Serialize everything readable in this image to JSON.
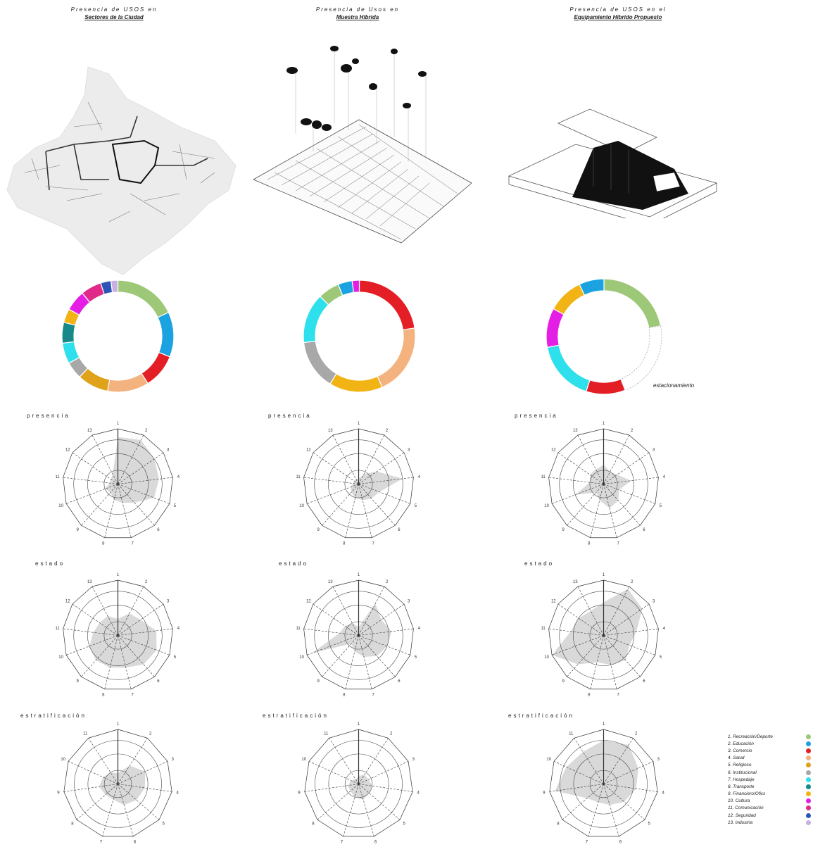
{
  "titles": [
    {
      "line1": "Presencia de USOS en",
      "line2": "Sectores de la Ciudad"
    },
    {
      "line1": "Presencia de Usos en",
      "line2": "Muestra Hibrida"
    },
    {
      "line1": "Presencia de USOS en el",
      "line2": "Equipamiento Hibrido Propuesto"
    }
  ],
  "section_labels": {
    "presencia": "presencia",
    "estado": "estado",
    "estratificacion": [
      "estratificación",
      "estratificación",
      "estratificación"
    ]
  },
  "donut_callout": "estacionamiento",
  "legend": [
    {
      "label": "1. Recreación/Deporte",
      "color": "#9dc878"
    },
    {
      "label": "2. Educación",
      "color": "#1aa3e0"
    },
    {
      "label": "3. Comercio",
      "color": "#e31e24"
    },
    {
      "label": "4. Salud",
      "color": "#f4b27f"
    },
    {
      "label": "5. Religioso",
      "color": "#e0a21a"
    },
    {
      "label": "6. Institucional",
      "color": "#a8a8a8"
    },
    {
      "label": "7. Hospedaje",
      "color": "#2de0ec"
    },
    {
      "label": "8. Transporte",
      "color": "#168a8a"
    },
    {
      "label": "9. Financiero/Ofics",
      "color": "#f2b415"
    },
    {
      "label": "10. Cultura",
      "color": "#e51ee5"
    },
    {
      "label": "11. Comunicación",
      "color": "#e02a8a"
    },
    {
      "label": "12. Seguridad",
      "color": "#2b56b8"
    },
    {
      "label": "13. Industria",
      "color": "#c9b0e0"
    }
  ],
  "chart_data": [
    {
      "type": "pie",
      "donut": true,
      "categories": [
        "1",
        "2",
        "3",
        "4",
        "5",
        "6",
        "7",
        "8",
        "9",
        "10",
        "11",
        "12",
        "13"
      ],
      "values": [
        18,
        13,
        10,
        12,
        9,
        5,
        6,
        6,
        4,
        6,
        6,
        3,
        2
      ],
      "colors": [
        "#9dc878",
        "#1aa3e0",
        "#e31e24",
        "#f4b27f",
        "#e0a21a",
        "#a8a8a8",
        "#2de0ec",
        "#168a8a",
        "#f2b415",
        "#e51ee5",
        "#e02a8a",
        "#2b56b8",
        "#c9b0e0"
      ]
    },
    {
      "type": "pie",
      "donut": true,
      "categories": [
        "3",
        "4",
        "9",
        "6",
        "7",
        "1",
        "2",
        "10"
      ],
      "values": [
        22,
        20,
        15,
        14,
        14,
        6,
        4,
        2
      ],
      "colors": [
        "#e31e24",
        "#f4b27f",
        "#f2b415",
        "#a8a8a8",
        "#2de0ec",
        "#9dc878",
        "#1aa3e0",
        "#e51ee5"
      ]
    },
    {
      "type": "pie",
      "donut": true,
      "categories": [
        "1",
        "estacionamiento",
        "3",
        "7",
        "10",
        "9",
        "2"
      ],
      "values": [
        22,
        22,
        11,
        17,
        11,
        10,
        7
      ],
      "colors": [
        "#9dc878",
        "#ffffff",
        "#e31e24",
        "#2de0ec",
        "#e51ee5",
        "#f2b415",
        "#1aa3e0"
      ]
    },
    {
      "type": "radar",
      "axes": [
        "1",
        "2",
        "3",
        "4",
        "5",
        "6",
        "7",
        "8",
        "9",
        "10",
        "11",
        "12",
        "13"
      ],
      "values": [
        0.85,
        0.9,
        0.8,
        0.75,
        0.7,
        0.45,
        0.35,
        0.3,
        0.2,
        0.25,
        0.15,
        0.15,
        0.2
      ]
    },
    {
      "type": "radar",
      "axes": [
        "1",
        "2",
        "3",
        "4",
        "5",
        "6",
        "7",
        "8",
        "9",
        "10",
        "11",
        "12",
        "13"
      ],
      "values": [
        0.1,
        0.2,
        0.4,
        0.8,
        0.4,
        0.35,
        0.3,
        0.25,
        0.2,
        0.15,
        0.1,
        0.1,
        0.1
      ]
    },
    {
      "type": "radar",
      "axes": [
        "1",
        "2",
        "3",
        "4",
        "5",
        "6",
        "7",
        "8",
        "9",
        "10",
        "11",
        "12",
        "13"
      ],
      "values": [
        0.35,
        0.25,
        0.3,
        0.5,
        0.3,
        0.4,
        0.45,
        0.3,
        0.2,
        0.55,
        0.25,
        0.3,
        0.3
      ]
    },
    {
      "type": "radar",
      "axes": [
        "1",
        "2",
        "3",
        "4",
        "5",
        "6",
        "7",
        "8",
        "9",
        "10",
        "11",
        "12",
        "13"
      ],
      "values": [
        0.3,
        0.45,
        0.5,
        0.7,
        0.75,
        0.7,
        0.6,
        0.6,
        0.6,
        0.55,
        0.45,
        0.4,
        0.4
      ]
    },
    {
      "type": "radar",
      "axes": [
        "1",
        "2",
        "3",
        "4",
        "5",
        "6",
        "7",
        "8",
        "9",
        "10",
        "11",
        "12",
        "13"
      ],
      "values": [
        0.15,
        0.65,
        0.5,
        0.6,
        0.55,
        0.5,
        0.4,
        0.3,
        0.2,
        0.9,
        0.35,
        0.3,
        0.25
      ]
    },
    {
      "type": "radar",
      "axes": [
        "1",
        "2",
        "3",
        "4",
        "5",
        "6",
        "7",
        "8",
        "9",
        "10",
        "11",
        "12",
        "13"
      ],
      "values": [
        0.6,
        0.95,
        0.85,
        0.6,
        0.5,
        0.6,
        0.55,
        0.5,
        0.7,
        1.0,
        0.6,
        0.55,
        0.5
      ]
    },
    {
      "type": "radar",
      "axes": [
        "1",
        "2",
        "3",
        "4",
        "5",
        "6",
        "7",
        "8",
        "9",
        "10",
        "11"
      ],
      "values": [
        0.2,
        0.4,
        0.55,
        0.5,
        0.45,
        0.4,
        0.3,
        0.3,
        0.35,
        0.3,
        0.25
      ]
    },
    {
      "type": "radar",
      "axes": [
        "1",
        "2",
        "3",
        "4",
        "5",
        "6",
        "7",
        "8",
        "9",
        "10",
        "11"
      ],
      "values": [
        0.15,
        0.2,
        0.2,
        0.25,
        0.25,
        0.3,
        0.25,
        0.2,
        0.2,
        0.15,
        0.1
      ]
    },
    {
      "type": "radar",
      "axes": [
        "1",
        "2",
        "3",
        "4",
        "5",
        "6",
        "7",
        "8",
        "9",
        "10",
        "11"
      ],
      "values": [
        0.8,
        0.85,
        0.7,
        0.6,
        0.5,
        0.4,
        0.35,
        0.4,
        0.9,
        0.75,
        0.7
      ]
    }
  ]
}
